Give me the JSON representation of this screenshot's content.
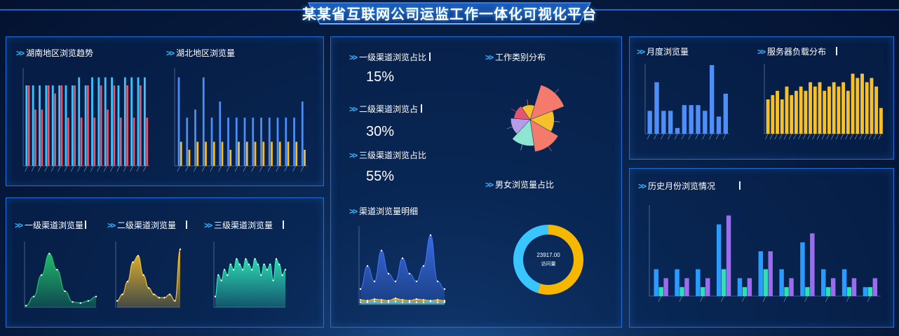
{
  "header": {
    "title": "某某省互联网公司运监工作一体化可视化平台"
  },
  "panels": {
    "hunan_trend": {
      "title": "湖南地区浏览趋势"
    },
    "hubei_views": {
      "title": "湖北地区浏览量"
    },
    "level1_views": {
      "title": "一级渠道浏览量"
    },
    "level2_views": {
      "title": "二级渠道浏览量"
    },
    "level3_views": {
      "title": "三级渠道浏览量"
    },
    "level1_share": {
      "title": "一级渠道浏览占比",
      "value": "15%"
    },
    "level2_share": {
      "title": "二级渠道浏览占",
      "value": "30%"
    },
    "level3_share": {
      "title": "三级渠道浏览占比",
      "value": "55%"
    },
    "channel_detail": {
      "title": "渠道浏览量明细"
    },
    "work_type": {
      "title": "工作类别分布"
    },
    "gender_share": {
      "title": "男女浏览量占比",
      "center_value": "23917.00",
      "center_label": "访问量"
    },
    "monthly_views": {
      "title": "月度浏览量"
    },
    "server_load": {
      "title": "服务器负载分布"
    },
    "history_monthly": {
      "title": "历史月份浏览情况"
    }
  },
  "colors": {
    "blue": "#4f8ef7",
    "pink": "#e6556f",
    "cyan": "#39c6ff",
    "yellow": "#f5c02c",
    "green": "#25c06b",
    "teal": "#2fe0b5",
    "purple": "#9a6cf0",
    "salmon": "#f47a6b"
  },
  "chart_data": [
    {
      "id": "hunan_trend",
      "type": "bar",
      "series": [
        {
          "color": "#39c6ff",
          "values": [
            10,
            10,
            10,
            10,
            10,
            10,
            10,
            10,
            11,
            10,
            11,
            11,
            11,
            11,
            10,
            11,
            11,
            11,
            11
          ]
        },
        {
          "color": "#e6556f",
          "values": [
            10,
            7,
            7,
            10,
            9,
            10,
            6,
            10,
            6,
            10,
            6,
            10,
            7,
            10,
            6,
            10,
            6,
            10,
            6
          ]
        }
      ],
      "ylim": [
        0,
        12
      ]
    },
    {
      "id": "hubei_views",
      "type": "bar",
      "series": [
        {
          "color": "#4f8ef7",
          "values": [
            11,
            6,
            7,
            11,
            6,
            8,
            6,
            6,
            6,
            6,
            6,
            6,
            6,
            6,
            6,
            8
          ]
        },
        {
          "color": "#f5c02c",
          "values": [
            3,
            2,
            3,
            3,
            3,
            3,
            2,
            3,
            3,
            3,
            3,
            3,
            3,
            3,
            3,
            2
          ]
        }
      ],
      "ylim": [
        0,
        12
      ]
    },
    {
      "id": "level1_views",
      "type": "area",
      "color": "#25c06b",
      "values": [
        0.3,
        2,
        6,
        10,
        7,
        3,
        1,
        0.8,
        1.2,
        2
      ],
      "ylim": [
        0,
        12
      ]
    },
    {
      "id": "level2_views",
      "type": "area",
      "color": "#f5c02c",
      "values": [
        1,
        2,
        4,
        7,
        8,
        5,
        3,
        2,
        1.5,
        1.5,
        2,
        1,
        9
      ],
      "ylim": [
        0,
        10
      ]
    },
    {
      "id": "level3_views",
      "type": "area",
      "color": "#2fe0b5",
      "values": [
        2,
        6,
        5,
        7,
        6,
        8,
        7,
        9,
        8,
        7,
        9,
        8,
        7,
        9,
        8,
        6,
        8,
        7,
        8,
        5,
        9,
        8,
        6,
        7
      ],
      "ylim": [
        0,
        12
      ]
    },
    {
      "id": "channel_detail",
      "type": "area",
      "series": [
        {
          "color": "#3d6ee8",
          "values": [
            2,
            5,
            3,
            7,
            4,
            3,
            6,
            4,
            3,
            5,
            9,
            3,
            2
          ]
        },
        {
          "color": "#f5c02c",
          "values": [
            0.6,
            0.5,
            0.7,
            0.6,
            0.5,
            0.8,
            0.6,
            0.5,
            0.7,
            0.6,
            0.5,
            0.6,
            0.5
          ]
        },
        {
          "color": "#39c6ff",
          "values": [
            0.3,
            0.3,
            0.4,
            0.3,
            0.3,
            0.4,
            0.3,
            0.3,
            0.3,
            0.3,
            0.4,
            0.3,
            0.3
          ]
        }
      ],
      "ylim": [
        0,
        10
      ]
    },
    {
      "id": "work_type",
      "type": "pie",
      "rose": true,
      "slices": [
        {
          "color": "#f47a6b",
          "value": 95
        },
        {
          "color": "#f5c02c",
          "value": 55
        },
        {
          "color": "#f47a6b",
          "value": 82
        },
        {
          "color": "#8fe6d0",
          "value": 62
        },
        {
          "color": "#b59ce8",
          "value": 40
        },
        {
          "color": "#e6556f",
          "value": 30
        },
        {
          "color": "#f5c02c",
          "value": 25
        }
      ]
    },
    {
      "id": "gender_share",
      "type": "pie",
      "donut": true,
      "slices": [
        {
          "color": "#f5b700",
          "value": 55
        },
        {
          "color": "#39c6ff",
          "value": 45
        }
      ]
    },
    {
      "id": "monthly_views",
      "type": "bar",
      "color": "#4f8ef7",
      "values": [
        4,
        9,
        4,
        4,
        1,
        5,
        5,
        5,
        4,
        12,
        3,
        7
      ],
      "ylim": [
        0,
        12
      ]
    },
    {
      "id": "server_load",
      "type": "bar",
      "color": "#f5c02c",
      "values": [
        8,
        9,
        10,
        8,
        11,
        9,
        10,
        11,
        10,
        12,
        11,
        12,
        10,
        11,
        12,
        11,
        12,
        10,
        14,
        13,
        14,
        12,
        13,
        11,
        6
      ],
      "ylim": [
        0,
        16
      ]
    },
    {
      "id": "history_monthly",
      "type": "bar",
      "series": [
        {
          "color": "#2a9cff",
          "values": [
            3,
            3,
            3,
            8,
            2,
            5,
            3,
            6,
            3,
            3,
            1
          ]
        },
        {
          "color": "#2fe0b5",
          "values": [
            1,
            1,
            1,
            3,
            1,
            3,
            1,
            1,
            1,
            1,
            1
          ]
        },
        {
          "color": "#9a6cf0",
          "values": [
            2,
            2,
            2,
            9,
            2,
            5,
            2,
            7,
            2,
            2,
            2
          ]
        }
      ],
      "ylim": [
        0,
        10
      ]
    }
  ]
}
